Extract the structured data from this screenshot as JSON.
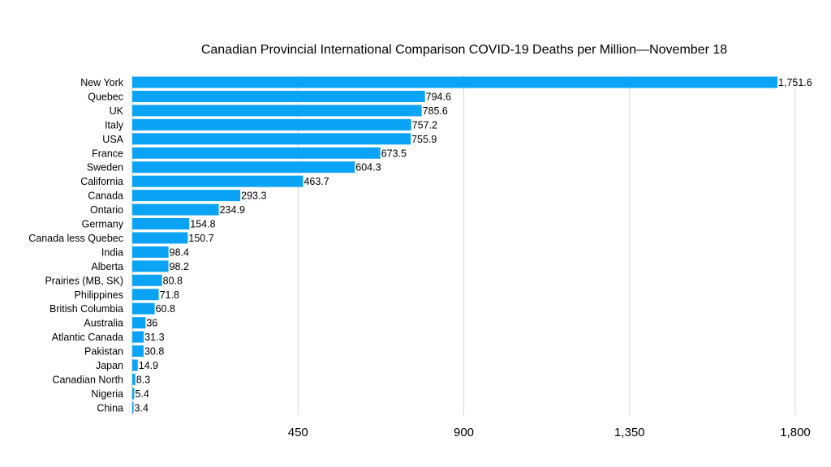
{
  "chart_data": {
    "type": "bar",
    "orientation": "horizontal",
    "title": "Canadian Provincial International Comparison COVID-19 Deaths per Million—November 18",
    "xlabel": "",
    "ylabel": "",
    "xlim": [
      0,
      1800
    ],
    "x_ticks": [
      450,
      900,
      1350,
      1800
    ],
    "x_tick_labels": [
      "450",
      "900",
      "1,350",
      "1,800"
    ],
    "grid": true,
    "bar_color": "#0aa3f5",
    "categories": [
      "New York",
      "Quebec",
      "UK",
      "Italy",
      "USA",
      "France",
      "Sweden",
      "California",
      "Canada",
      "Ontario",
      "Germany",
      "Canada less Quebec",
      "India",
      "Alberta",
      "Prairies (MB, SK)",
      "Philippines",
      "British Columbia",
      "Australia",
      "Atlantic Canada",
      "Pakistan",
      "Japan",
      "Canadian North",
      "Nigeria",
      "China"
    ],
    "values": [
      1751.6,
      794.6,
      785.6,
      757.2,
      755.9,
      673.5,
      604.3,
      463.7,
      293.3,
      234.9,
      154.8,
      150.7,
      98.4,
      98.2,
      80.8,
      71.8,
      60.8,
      36,
      31.3,
      30.8,
      14.9,
      8.3,
      5.4,
      3.4
    ],
    "value_labels": [
      "1,751.6",
      "794.6",
      "785.6",
      "757.2",
      "755.9",
      "673.5",
      "604.3",
      "463.7",
      "293.3",
      "234.9",
      "154.8",
      "150.7",
      "98.4",
      "98.2",
      "80.8",
      "71.8",
      "60.8",
      "36",
      "31.3",
      "30.8",
      "14.9",
      "8.3",
      "5.4",
      "3.4"
    ]
  }
}
